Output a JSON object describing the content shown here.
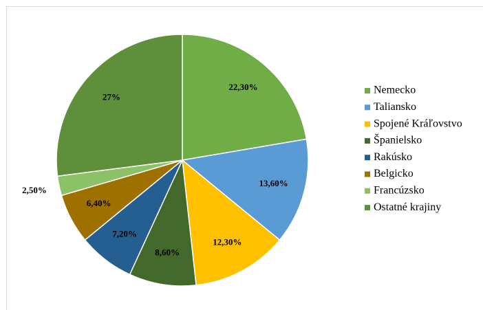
{
  "chart_data": {
    "type": "pie",
    "categories": [
      "Nemecko",
      "Taliansko",
      "Spojené Kráľovstvo",
      "Španielsko",
      "Rakúsko",
      "Belgicko",
      "Francúzsko",
      "Ostatné krajiny"
    ],
    "values": [
      22.3,
      13.6,
      12.3,
      8.6,
      7.2,
      6.4,
      2.5,
      27
    ],
    "value_labels": [
      "22,30%",
      "13,60%",
      "12,30%",
      "8,60%",
      "7,20%",
      "6,40%",
      "2,50%",
      "27%"
    ],
    "colors": [
      "#70ad47",
      "#5b9bd5",
      "#ffc000",
      "#43682b",
      "#255e91",
      "#9e7000",
      "#8cc168",
      "#5e8f3a"
    ],
    "legend": "right"
  }
}
